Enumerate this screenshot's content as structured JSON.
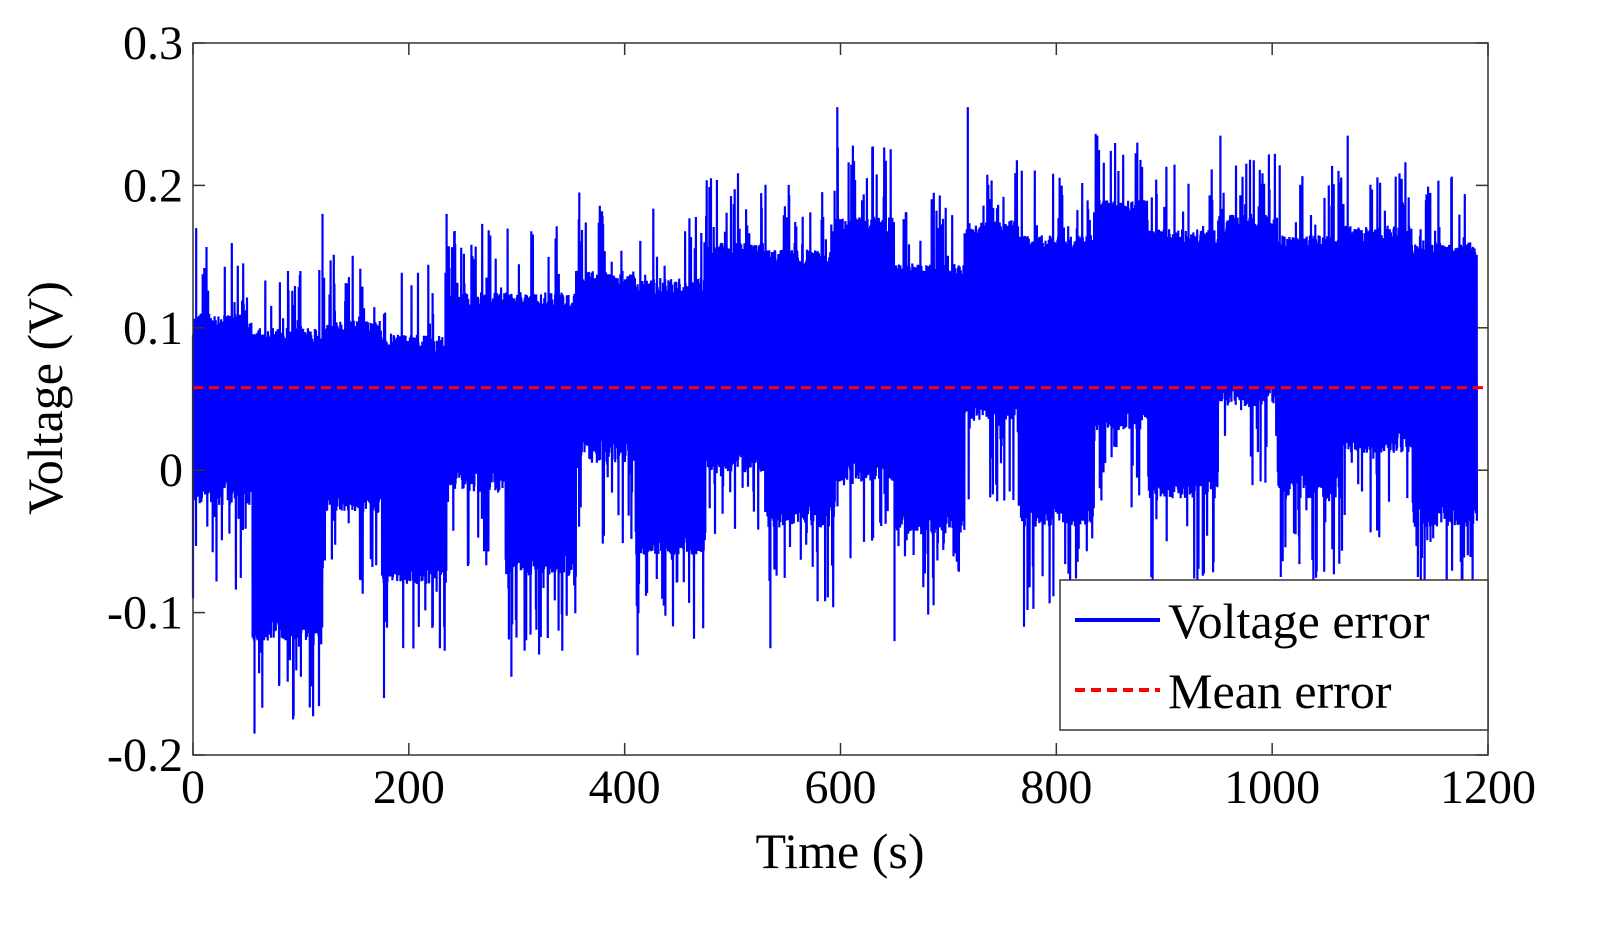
{
  "chart_data": {
    "type": "line",
    "title": "",
    "xlabel": "Time (s)",
    "ylabel": "Voltage (V)",
    "xlim": [
      0,
      1200
    ],
    "ylim": [
      -0.2,
      0.3
    ],
    "xticks": [
      0,
      200,
      400,
      600,
      800,
      1000,
      1200
    ],
    "xtick_labels": [
      "0",
      "200",
      "400",
      "600",
      "800",
      "1000",
      "1200"
    ],
    "yticks": [
      -0.2,
      -0.1,
      0,
      0.1,
      0.2,
      0.3
    ],
    "ytick_labels": [
      "-0.2",
      "-0.1",
      "0",
      "0.1",
      "0.2",
      "0.3"
    ],
    "grid": false,
    "legend_position": "bottom-right",
    "series": [
      {
        "name": "Voltage error",
        "color": "#0000ff",
        "style": "solid",
        "x_range": [
          0,
          1190
        ],
        "segments": [
          {
            "start": 0,
            "end": 55,
            "lo": -0.025,
            "hi": 0.11
          },
          {
            "start": 55,
            "end": 120,
            "lo": -0.12,
            "hi": 0.1
          },
          {
            "start": 120,
            "end": 175,
            "lo": -0.03,
            "hi": 0.105
          },
          {
            "start": 175,
            "end": 235,
            "lo": -0.08,
            "hi": 0.095
          },
          {
            "start": 235,
            "end": 290,
            "lo": -0.015,
            "hi": 0.125
          },
          {
            "start": 290,
            "end": 355,
            "lo": -0.075,
            "hi": 0.125
          },
          {
            "start": 355,
            "end": 410,
            "lo": 0.005,
            "hi": 0.14
          },
          {
            "start": 410,
            "end": 475,
            "lo": -0.06,
            "hi": 0.135
          },
          {
            "start": 475,
            "end": 530,
            "lo": -0.002,
            "hi": 0.16
          },
          {
            "start": 530,
            "end": 595,
            "lo": -0.04,
            "hi": 0.155
          },
          {
            "start": 595,
            "end": 650,
            "lo": -0.008,
            "hi": 0.178
          },
          {
            "start": 650,
            "end": 715,
            "lo": -0.045,
            "hi": 0.145
          },
          {
            "start": 715,
            "end": 765,
            "lo": 0.035,
            "hi": 0.175
          },
          {
            "start": 765,
            "end": 835,
            "lo": -0.04,
            "hi": 0.165
          },
          {
            "start": 835,
            "end": 885,
            "lo": 0.028,
            "hi": 0.19
          },
          {
            "start": 885,
            "end": 950,
            "lo": -0.02,
            "hi": 0.17
          },
          {
            "start": 950,
            "end": 1005,
            "lo": 0.045,
            "hi": 0.18
          },
          {
            "start": 1005,
            "end": 1065,
            "lo": -0.02,
            "hi": 0.165
          },
          {
            "start": 1065,
            "end": 1130,
            "lo": 0.012,
            "hi": 0.172
          },
          {
            "start": 1130,
            "end": 1190,
            "lo": -0.04,
            "hi": 0.16
          }
        ],
        "spikes": [
          {
            "x": 0,
            "y": -0.09
          },
          {
            "x": 3,
            "y": 0.17
          },
          {
            "x": 57,
            "y": -0.185
          },
          {
            "x": 80,
            "y": -0.15
          },
          {
            "x": 100,
            "y": -0.145
          },
          {
            "x": 120,
            "y": 0.18
          },
          {
            "x": 177,
            "y": -0.16
          },
          {
            "x": 235,
            "y": 0.18
          },
          {
            "x": 295,
            "y": -0.145
          },
          {
            "x": 358,
            "y": 0.195
          },
          {
            "x": 412,
            "y": -0.13
          },
          {
            "x": 480,
            "y": 0.205
          },
          {
            "x": 535,
            "y": -0.125
          },
          {
            "x": 597,
            "y": 0.255
          },
          {
            "x": 650,
            "y": -0.12
          },
          {
            "x": 718,
            "y": 0.255
          },
          {
            "x": 770,
            "y": -0.11
          },
          {
            "x": 838,
            "y": 0.235
          },
          {
            "x": 888,
            "y": -0.075
          },
          {
            "x": 952,
            "y": 0.235
          },
          {
            "x": 1008,
            "y": -0.075
          },
          {
            "x": 1070,
            "y": 0.235
          },
          {
            "x": 1135,
            "y": -0.075
          }
        ]
      },
      {
        "name": "Mean error",
        "color": "#ff0000",
        "style": "dashed",
        "y": 0.058
      }
    ]
  }
}
